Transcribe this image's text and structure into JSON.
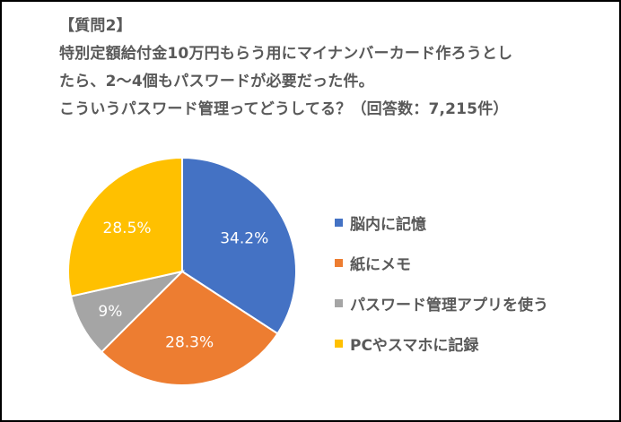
{
  "title": {
    "line1": "【質問2】",
    "line2": "特別定額給付金10万円もらう用にマイナンバーカード作ろうとし",
    "line3": "たら、2〜4個もパスワードが必要だった件。",
    "line4": "こういうパスワード管理ってどうしてる？（回答数：7,215件）"
  },
  "legend": [
    {
      "label": "脳内に記憶",
      "color": "#4472C4"
    },
    {
      "label": "紙にメモ",
      "color": "#ED7D31"
    },
    {
      "label": "パスワード管理アプリを使う",
      "color": "#A5A5A5"
    },
    {
      "label": "PCやスマホに記録",
      "color": "#FFC000"
    }
  ],
  "labels": [
    "34.2%",
    "28.3%",
    "9%",
    "28.5%"
  ],
  "chart_data": {
    "type": "pie",
    "title": "【質問2】特別定額給付金10万円もらう用にマイナンバーカード作ろうとしたら、2〜4個もパスワードが必要だった件。こういうパスワード管理ってどうしてる？（回答数：7,215件）",
    "categories": [
      "脳内に記憶",
      "紙にメモ",
      "パスワード管理アプリを使う",
      "PCやスマホに記録"
    ],
    "values": [
      34.2,
      28.3,
      9,
      28.5
    ],
    "colors": [
      "#4472C4",
      "#ED7D31",
      "#A5A5A5",
      "#FFC000"
    ],
    "data_labels": [
      "34.2%",
      "28.3%",
      "9%",
      "28.5%"
    ],
    "legend_position": "right",
    "start_angle": "12 o'clock, clockwise"
  }
}
